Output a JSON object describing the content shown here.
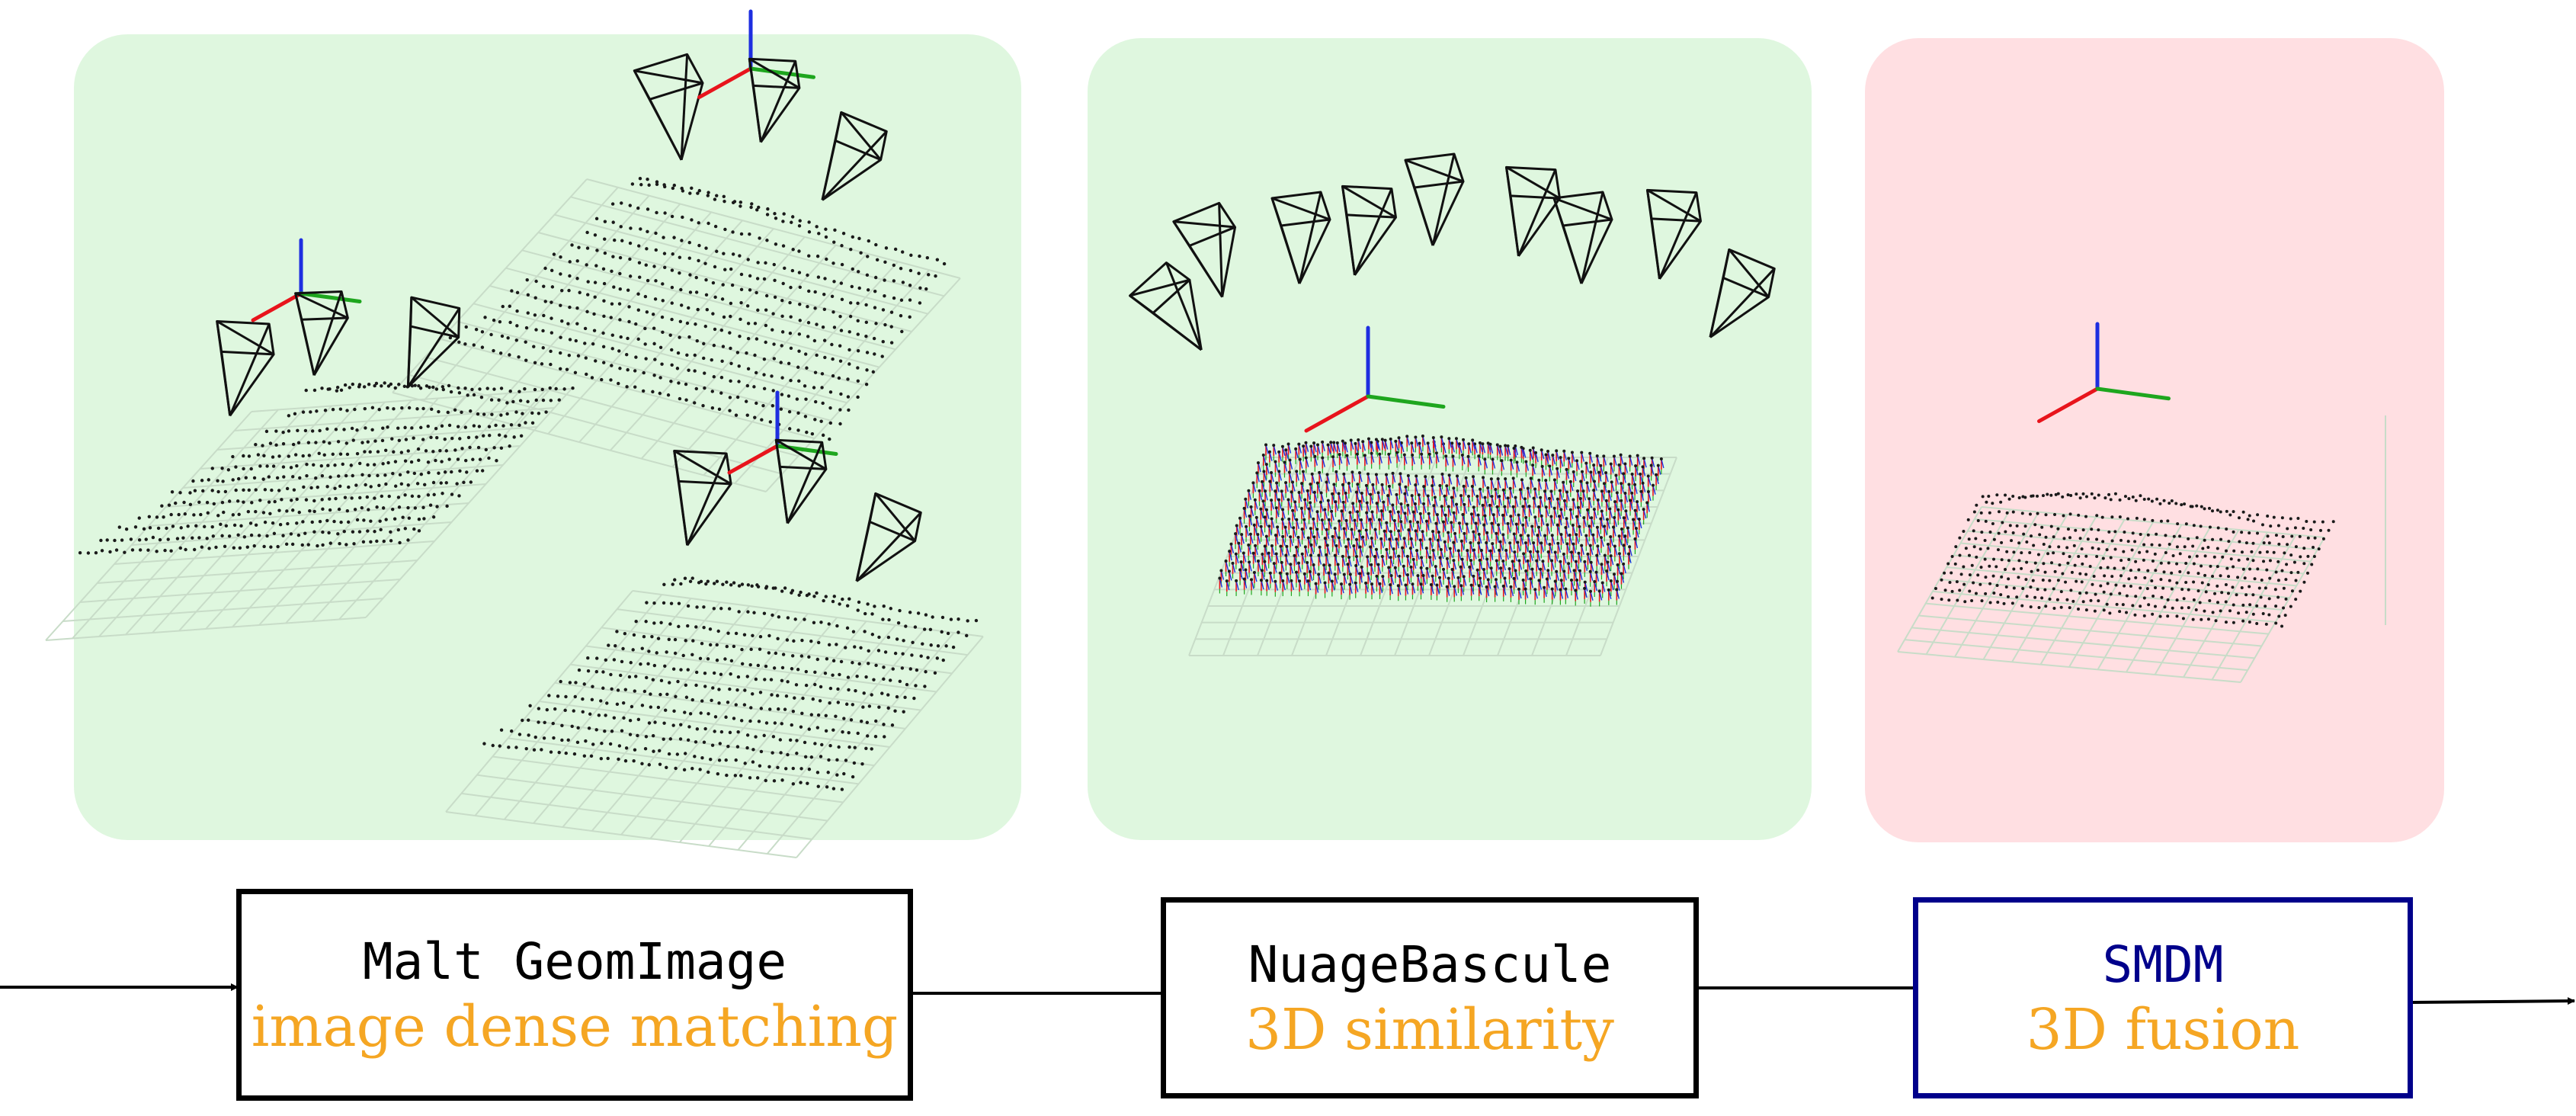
{
  "colors": {
    "panel_green": "#dff7df",
    "panel_pink": "#ffdfe2",
    "name_black": "#000000",
    "name_blue": "#00008b",
    "desc_orange": "#f5a623",
    "axis_red": "#e8141c",
    "axis_green": "#1ea61e",
    "axis_blue": "#1e2ee0",
    "points": "#1a1a1a",
    "grid": "#c8dcc8"
  },
  "icons": {
    "camera": "camera-frustum-icon",
    "axes": "coordinate-axes-icon",
    "arrow": "flow-arrow-icon"
  },
  "steps": [
    {
      "name": "Malt GeomImage",
      "description": "image dense matching"
    },
    {
      "name": "NuageBascule",
      "description": "3D similarity"
    },
    {
      "name": "SMDM",
      "description": "3D fusion"
    }
  ]
}
